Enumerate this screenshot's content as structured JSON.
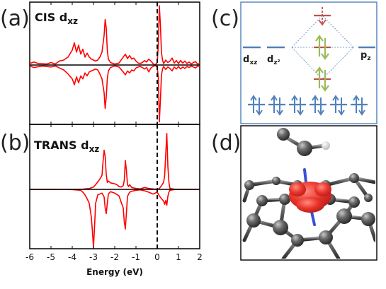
{
  "panels": {
    "a": "(a)",
    "b": "(b)",
    "c": "(c)",
    "d": "(d)"
  },
  "chart_data": [
    {
      "type": "line",
      "title": "CIS d",
      "title_subscript": "xz",
      "xlabel": "Energy (eV)",
      "xlim": [
        -6,
        2
      ],
      "x_ticks": [
        "-6",
        "-5",
        "-4",
        "-3",
        "-2",
        "-1",
        "0",
        "1",
        "2"
      ],
      "fermi_level": 0,
      "grid": false,
      "color": "#ff0000",
      "series": [
        {
          "x": [
            -6.0,
            -5.8,
            -5.6,
            -5.2,
            -5.0,
            -4.8,
            -4.6,
            -4.4,
            -4.2,
            -4.0,
            -3.9,
            -3.8,
            -3.7,
            -3.6,
            -3.5,
            -3.4,
            -3.3,
            -3.2,
            -3.1,
            -3.0,
            -2.9,
            -2.8,
            -2.7,
            -2.6,
            -2.5,
            -2.45,
            -2.4,
            -2.35,
            -2.3,
            -2.2,
            -2.0,
            -1.8,
            -1.6,
            -1.5,
            -1.4,
            -1.3,
            -1.2,
            -1.1,
            -1.0,
            -0.9,
            -0.8,
            -0.7,
            -0.6,
            -0.5,
            -0.4,
            -0.3,
            -0.2,
            -0.1,
            0.0,
            0.05,
            0.1,
            0.15,
            0.2,
            0.25,
            0.3,
            0.35,
            0.4,
            0.5,
            0.6,
            0.7,
            0.8,
            0.9,
            1.0,
            1.1,
            1.2,
            1.3,
            1.4,
            1.5,
            1.6,
            1.7,
            1.8,
            1.9,
            2.0
          ],
          "y": [
            0.3,
            0.6,
            0.3,
            0.2,
            0.5,
            0.2,
            0.8,
            1.0,
            1.6,
            3.0,
            4.5,
            2.6,
            4.0,
            2.2,
            3.2,
            1.6,
            2.4,
            1.6,
            1.2,
            1.0,
            0.8,
            1.0,
            1.6,
            2.6,
            6.0,
            9.2,
            7.5,
            3.0,
            1.2,
            0.5,
            0.2,
            0.4,
            1.6,
            2.2,
            1.3,
            1.9,
            1.2,
            1.4,
            0.8,
            0.4,
            0.3,
            0.5,
            0.9,
            0.6,
            1.2,
            0.8,
            0.3,
            0.0,
            0.5,
            4.0,
            12.0,
            8.0,
            2.5,
            1.0,
            0.3,
            0.6,
            1.0,
            0.5,
            0.8,
            1.4,
            0.4,
            0.9,
            0.3,
            0.9,
            0.4,
            0.8,
            0.3,
            0.6,
            0.2,
            0.5,
            0.7,
            0.2,
            0.3
          ]
        },
        {
          "x": [
            -6.0,
            -5.8,
            -5.4,
            -5.0,
            -4.8,
            -4.6,
            -4.4,
            -4.2,
            -4.0,
            -3.9,
            -3.8,
            -3.7,
            -3.6,
            -3.5,
            -3.4,
            -3.3,
            -3.2,
            -3.1,
            -3.0,
            -2.9,
            -2.8,
            -2.7,
            -2.6,
            -2.5,
            -2.45,
            -2.4,
            -2.35,
            -2.3,
            -2.2,
            -2.0,
            -1.8,
            -1.6,
            -1.5,
            -1.4,
            -1.3,
            -1.2,
            -1.1,
            -1.0,
            -0.9,
            -0.8,
            -0.7,
            -0.6,
            -0.5,
            -0.4,
            -0.3,
            -0.2,
            -0.1,
            0.0,
            0.05,
            0.1,
            0.15,
            0.2,
            0.25,
            0.3,
            0.35,
            0.4,
            0.5,
            0.6,
            0.7,
            0.8,
            0.9,
            1.0,
            1.1,
            1.2,
            1.3,
            1.4,
            1.5,
            1.6,
            1.7,
            1.8,
            1.9,
            2.0
          ],
          "y": [
            -0.2,
            -0.5,
            -0.2,
            -0.4,
            -0.2,
            -0.6,
            -1.0,
            -1.8,
            -2.8,
            -4.0,
            -2.4,
            -3.6,
            -2.2,
            -2.8,
            -1.6,
            -2.2,
            -1.4,
            -1.2,
            -1.0,
            -0.8,
            -1.0,
            -1.8,
            -2.8,
            -5.6,
            -8.8,
            -6.5,
            -2.8,
            -1.2,
            -0.5,
            -0.2,
            -0.4,
            -1.4,
            -2.0,
            -1.2,
            -1.6,
            -1.0,
            -1.2,
            -0.6,
            -0.4,
            -0.3,
            -0.5,
            -0.8,
            -0.5,
            -1.4,
            -0.6,
            -0.3,
            -0.1,
            -0.4,
            -2.5,
            -11.5,
            -7.0,
            -2.0,
            -0.8,
            -0.3,
            -0.6,
            -0.9,
            -0.4,
            -0.7,
            -1.2,
            -0.4,
            -0.8,
            -0.3,
            -0.8,
            -0.4,
            -0.7,
            -0.3,
            -0.5,
            -0.2,
            -0.4,
            -0.6,
            -0.2,
            -0.3
          ]
        }
      ]
    },
    {
      "type": "line",
      "title": "TRANS d",
      "title_subscript": "xz",
      "xlabel": "Energy (eV)",
      "xlim": [
        -6,
        2
      ],
      "x_ticks": [
        "-6",
        "-5",
        "-4",
        "-3",
        "-2",
        "-1",
        "0",
        "1",
        "2"
      ],
      "fermi_level": 0,
      "grid": false,
      "color": "#ff0000",
      "series": [
        {
          "x": [
            -6.0,
            -5.0,
            -4.0,
            -3.5,
            -3.2,
            -3.0,
            -2.9,
            -2.8,
            -2.7,
            -2.6,
            -2.55,
            -2.5,
            -2.45,
            -2.4,
            -2.35,
            -2.3,
            -2.2,
            -2.0,
            -1.9,
            -1.8,
            -1.7,
            -1.6,
            -1.55,
            -1.5,
            -1.45,
            -1.4,
            -1.35,
            -1.3,
            -1.2,
            -1.1,
            -1.0,
            -0.8,
            -0.6,
            -0.4,
            -0.2,
            0.0,
            0.1,
            0.2,
            0.3,
            0.35,
            0.4,
            0.45,
            0.5,
            0.55,
            0.6,
            0.8,
            1.0,
            1.2,
            1.4,
            1.6,
            1.8,
            2.0
          ],
          "y": [
            0.0,
            0.0,
            0.0,
            0.05,
            0.2,
            0.5,
            1.0,
            1.6,
            2.2,
            3.0,
            6.0,
            8.4,
            7.0,
            3.2,
            1.5,
            1.8,
            1.4,
            1.2,
            1.0,
            0.6,
            0.5,
            0.8,
            2.0,
            6.2,
            4.0,
            1.0,
            0.6,
            1.0,
            0.4,
            0.3,
            0.2,
            0.1,
            0.4,
            0.2,
            0.1,
            0.0,
            0.2,
            0.8,
            1.5,
            3.0,
            7.5,
            12.0,
            5.0,
            1.5,
            0.2,
            0.05,
            0.0,
            0.0,
            0.0,
            0.0,
            0.0,
            0.0
          ]
        },
        {
          "x": [
            -6.0,
            -5.0,
            -4.0,
            -3.6,
            -3.5,
            -3.4,
            -3.3,
            -3.2,
            -3.1,
            -3.05,
            -3.0,
            -2.95,
            -2.9,
            -2.8,
            -2.6,
            -2.5,
            -2.45,
            -2.4,
            -2.35,
            -2.3,
            -2.2,
            -2.0,
            -1.8,
            -1.6,
            -1.55,
            -1.5,
            -1.45,
            -1.4,
            -1.3,
            -1.2,
            -1.0,
            -0.8,
            -0.6,
            -0.4,
            -0.2,
            0.0,
            0.1,
            0.2,
            0.3,
            0.35,
            0.4,
            0.45,
            0.5,
            0.55,
            0.6,
            0.8,
            1.0,
            1.2,
            1.4,
            1.6,
            1.8,
            2.0
          ],
          "y": [
            0.0,
            0.0,
            -0.05,
            -0.2,
            -0.6,
            -1.2,
            -2.0,
            -3.0,
            -6.0,
            -9.0,
            -12.5,
            -8.0,
            -3.0,
            -1.2,
            -0.8,
            -1.6,
            -4.0,
            -5.2,
            -3.0,
            -1.0,
            -0.5,
            -0.8,
            -1.4,
            -4.0,
            -7.0,
            -8.5,
            -5.0,
            -1.5,
            -0.6,
            -0.4,
            -0.2,
            -0.1,
            -0.3,
            -0.6,
            -1.0,
            -0.6,
            -1.4,
            -2.0,
            -2.5,
            -3.2,
            -2.4,
            -3.4,
            -1.5,
            -0.6,
            -0.2,
            -0.05,
            0.0,
            0.0,
            0.0,
            0.0,
            0.0,
            0.0
          ]
        }
      ]
    }
  ],
  "orbital_diagram": {
    "labels": [
      {
        "main": "d",
        "sub": "xz"
      },
      {
        "main": "d",
        "sub": "z²"
      },
      {
        "main": "p",
        "sub": "z"
      }
    ],
    "colors": {
      "blue": "#4f81bd",
      "green": "#9bbb59",
      "red": "#c0504d",
      "frame": "#4f81bd"
    },
    "middle_levels": [
      {
        "color": "red",
        "occupancy": "empty-dashed"
      },
      {
        "color": "red",
        "occupancy": "paired"
      },
      {
        "color": "red",
        "occupancy": "paired"
      }
    ],
    "lower_levels_count": 6
  },
  "structure_render": {
    "atom_color": "#5a5a5a",
    "nitrogen_color": "#3a4fd8",
    "hydrogen_color": "#e8e8e8",
    "density_color": "#e8342a"
  }
}
